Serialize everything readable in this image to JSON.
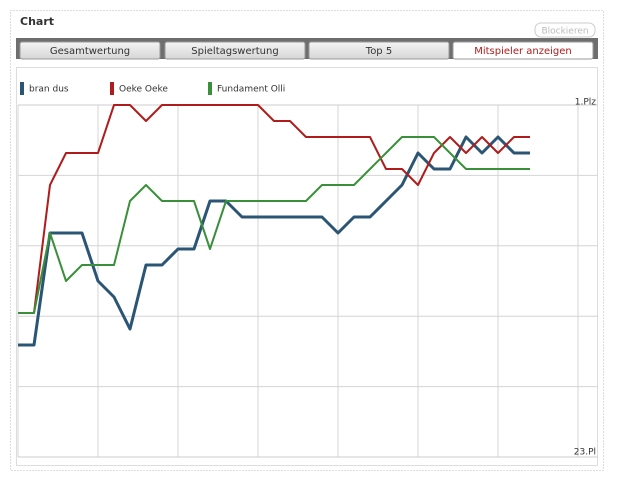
{
  "panel": {
    "title": "Chart",
    "button": "Blockieren",
    "tabs": [
      "Gesamtwertung",
      "Spieltagswertung",
      "Top 5",
      "Mitspieler anzeigen"
    ],
    "active_tab": 3
  },
  "chart_data": {
    "type": "line",
    "y_inverted": true,
    "grid": true,
    "ylim": [
      1,
      23
    ],
    "yticks": [
      {
        "value": 1,
        "label": "1.Plz"
      },
      {
        "value": 23,
        "label": "23.Pl"
      }
    ],
    "series": [
      {
        "name": "bran dus",
        "color": "#2b5575",
        "width": 3,
        "values": [
          16,
          16,
          9,
          9,
          9,
          12,
          13,
          15,
          11,
          11,
          10,
          10,
          7,
          7,
          8,
          8,
          8,
          8,
          8,
          8,
          9,
          8,
          8,
          7,
          6,
          4,
          5,
          5,
          3,
          4,
          3,
          4,
          4
        ]
      },
      {
        "name": "Oeke Oeke",
        "color": "#b01c1c",
        "width": 2,
        "values": [
          14,
          14,
          6,
          4,
          4,
          4,
          1,
          1,
          2,
          1,
          1,
          1,
          1,
          1,
          1,
          1,
          2,
          2,
          3,
          3,
          3,
          3,
          3,
          5,
          5,
          6,
          4,
          3,
          4,
          3,
          4,
          3,
          3
        ]
      },
      {
        "name": "Fundament Olli",
        "color": "#3a8f3a",
        "width": 2,
        "values": [
          14,
          14,
          9,
          12,
          11,
          11,
          11,
          7,
          6,
          7,
          7,
          7,
          10,
          7,
          7,
          7,
          7,
          7,
          7,
          6,
          6,
          6,
          5,
          4,
          3,
          3,
          3,
          4,
          5,
          5,
          5,
          5,
          5
        ]
      }
    ]
  }
}
